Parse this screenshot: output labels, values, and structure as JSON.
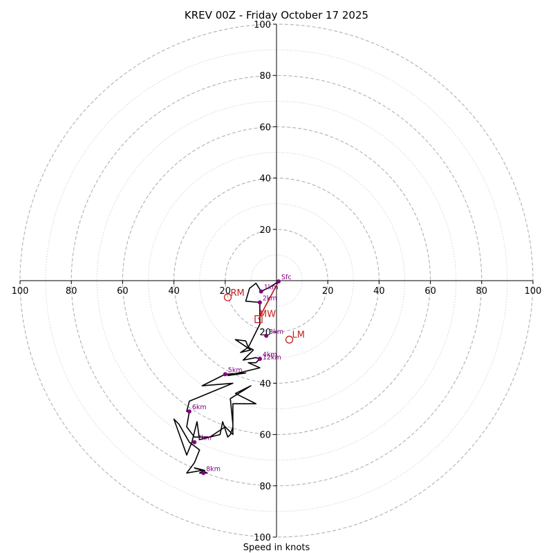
{
  "chart_data": {
    "type": "hodograph",
    "title": "KREV 00Z - Friday October 17 2025",
    "xlabel": "Speed in knots",
    "ring_values": [
      20,
      40,
      60,
      80,
      100
    ],
    "minor_ring_values": [
      10,
      30,
      50,
      70,
      90
    ],
    "range": [
      -100,
      100
    ],
    "tick_labels": {
      "left": [
        "100",
        "80",
        "60",
        "40",
        "20"
      ],
      "right": [
        "20",
        "40",
        "60",
        "80",
        "100"
      ],
      "top": [
        "100",
        "80",
        "60",
        "40",
        "20"
      ],
      "bottom": [
        "20",
        "40",
        "60",
        "80",
        "100"
      ]
    },
    "trace": [
      {
        "u": 0.8,
        "v": -0.3
      },
      {
        "u": -2.5,
        "v": -2.5
      },
      {
        "u": -6,
        "v": -4.2
      },
      {
        "u": -8,
        "v": -1
      },
      {
        "u": -10.5,
        "v": -3
      },
      {
        "u": -12,
        "v": -8
      },
      {
        "u": -6.5,
        "v": -8.5
      },
      {
        "u": -6.5,
        "v": -13
      },
      {
        "u": -6.5,
        "v": -17
      },
      {
        "u": -9,
        "v": -22
      },
      {
        "u": -11,
        "v": -26
      },
      {
        "u": -14,
        "v": -28
      },
      {
        "u": -10,
        "v": -27
      },
      {
        "u": -16,
        "v": -23
      },
      {
        "u": -12,
        "v": -23.5
      },
      {
        "u": -11,
        "v": -26
      },
      {
        "u": -9,
        "v": -27
      },
      {
        "u": -13,
        "v": -31
      },
      {
        "u": -8,
        "v": -30
      },
      {
        "u": -6.5,
        "v": -30.5
      },
      {
        "u": -8,
        "v": -32
      },
      {
        "u": -11,
        "v": -32
      },
      {
        "u": -6.5,
        "v": -34
      },
      {
        "u": -19,
        "v": -37
      },
      {
        "u": -12,
        "v": -36
      },
      {
        "u": -20,
        "v": -36.5
      },
      {
        "u": -29,
        "v": -41
      },
      {
        "u": -17,
        "v": -40
      },
      {
        "u": -34,
        "v": -47
      },
      {
        "u": -35,
        "v": -51
      },
      {
        "u": -34,
        "v": -51
      },
      {
        "u": -35,
        "v": -57
      },
      {
        "u": -32,
        "v": -61
      },
      {
        "u": -26,
        "v": -61
      },
      {
        "u": -20,
        "v": -57
      },
      {
        "u": -17,
        "v": -60
      },
      {
        "u": -17,
        "v": -54
      },
      {
        "u": -17,
        "v": -48
      },
      {
        "u": -8,
        "v": -48
      },
      {
        "u": -16,
        "v": -44
      },
      {
        "u": -10,
        "v": -41
      },
      {
        "u": -18,
        "v": -46
      },
      {
        "u": -17,
        "v": -56
      },
      {
        "u": -17,
        "v": -57
      },
      {
        "u": -18,
        "v": -60
      },
      {
        "u": -19,
        "v": -61
      },
      {
        "u": -21,
        "v": -55
      },
      {
        "u": -22,
        "v": -60
      },
      {
        "u": -30,
        "v": -62
      },
      {
        "u": -31,
        "v": -55
      },
      {
        "u": -33,
        "v": -63
      },
      {
        "u": -35,
        "v": -68
      },
      {
        "u": -40,
        "v": -54
      },
      {
        "u": -38,
        "v": -56
      },
      {
        "u": -34,
        "v": -63
      },
      {
        "u": -30,
        "v": -66
      },
      {
        "u": -32,
        "v": -71
      },
      {
        "u": -35,
        "v": -75
      },
      {
        "u": -29,
        "v": -74
      },
      {
        "u": -27,
        "v": -75
      },
      {
        "u": -29,
        "v": -74
      },
      {
        "u": -32,
        "v": -73
      },
      {
        "u": -28,
        "v": -74
      },
      {
        "u": -30,
        "v": -75
      },
      {
        "u": -27.5,
        "v": -75
      }
    ],
    "height_markers": [
      {
        "label": "Sfc",
        "u": 0.8,
        "v": -0.3
      },
      {
        "label": "1km",
        "u": -6,
        "v": -4.2
      },
      {
        "label": "2km",
        "u": -6.5,
        "v": -8.5
      },
      {
        "label": "3km",
        "u": -4,
        "v": -21.5
      },
      {
        "label": "4km",
        "u": -6.5,
        "v": -30.5
      },
      {
        "label": "5km",
        "u": -20,
        "v": -36.5
      },
      {
        "label": "6km",
        "u": -34,
        "v": -51
      },
      {
        "label": "7km",
        "u": -32,
        "v": -63
      },
      {
        "label": "8km",
        "u": -28.5,
        "v": -75
      },
      {
        "label": "12km",
        "u": -6.5,
        "v": -30.5
      }
    ],
    "storm_motion": {
      "rm": {
        "label": "RM",
        "u": -19,
        "v": -6.5
      },
      "lm": {
        "label": "LM",
        "u": 5,
        "v": -23
      },
      "mw": {
        "label": "MW",
        "u": -7,
        "v": -15
      },
      "line": [
        {
          "u": 0.8,
          "v": -0.3
        },
        {
          "u": -7,
          "v": -15
        }
      ]
    },
    "colors": {
      "trace": "#000000",
      "marker": "#800080",
      "storm": "#c41e1e",
      "grid_major": "#b0b0b0",
      "grid_minor": "#c8c8c8",
      "axis": "#000000"
    }
  }
}
